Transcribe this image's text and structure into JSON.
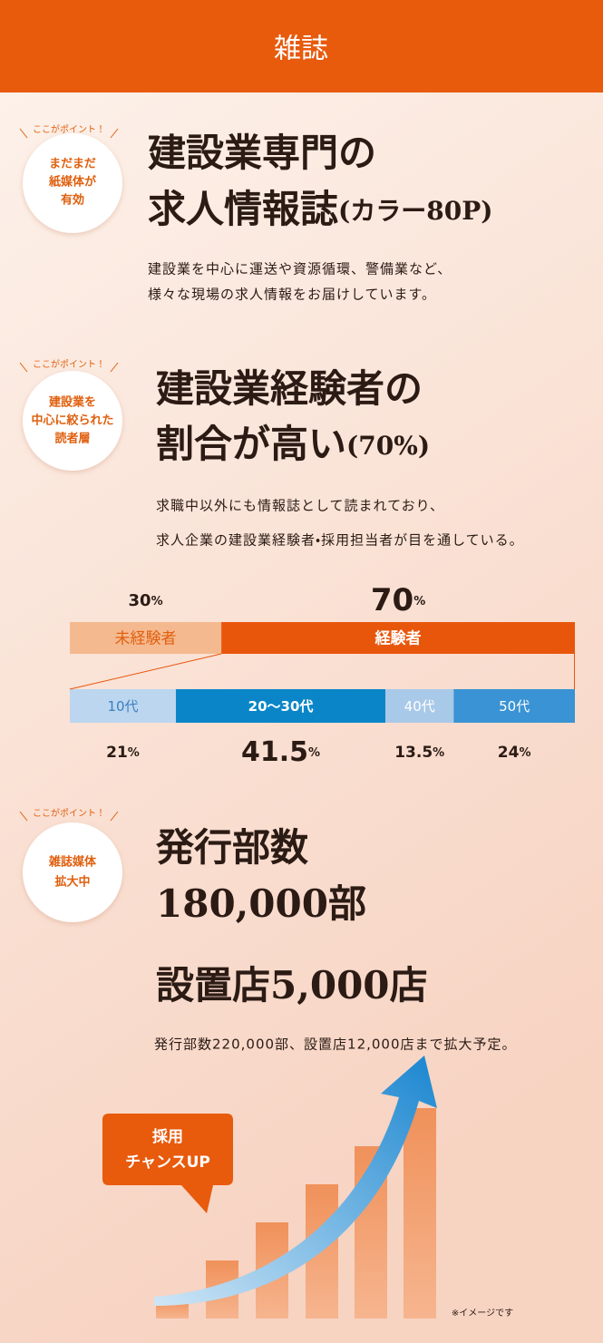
{
  "header": {
    "title": "雑誌"
  },
  "sections": [
    {
      "badge": "ここがポイント！",
      "circle": [
        "まだまだ",
        "紙媒体が",
        "有効"
      ],
      "heading": [
        "建設業専門の",
        "求人情報誌"
      ],
      "heading_suffix": "(カラー80P)",
      "body": [
        "建設業を中心に運送や資源循環、警備業など、",
        "様々な現場の求人情報をお届けしています。"
      ]
    },
    {
      "badge": "ここがポイント！",
      "circle": [
        "建設業を",
        "中心に絞られた",
        "読者層"
      ],
      "heading": [
        "建設業経験者の",
        "割合が高い"
      ],
      "heading_suffix": "(70%)",
      "body": [
        "求職中以外にも情報誌として読まれており、",
        "求人企業の建設業経験者・採用担当者が目を通している。"
      ],
      "experience_chart": {
        "unit": "%",
        "segments": [
          {
            "label": "未経験者",
            "value": 30,
            "color": "#f5b98f",
            "text_color": "#e0600f"
          },
          {
            "label": "経験者",
            "value": 70,
            "color": "#e8560c",
            "text_color": "#ffffff"
          }
        ]
      },
      "age_chart": {
        "unit": "%",
        "segments": [
          {
            "label": "10代",
            "value": 21,
            "color": "#bcd6ef",
            "text_color": "#3a7fc0"
          },
          {
            "label": "20～30代",
            "value": 41.5,
            "color": "#0a86c8",
            "text_color": "#ffffff"
          },
          {
            "label": "40代",
            "value": 13.5,
            "color": "#a9c9e8",
            "text_color": "#ffffff"
          },
          {
            "label": "50代",
            "value": 24,
            "color": "#3a93d4",
            "text_color": "#ffffff"
          }
        ]
      }
    },
    {
      "badge": "ここがポイント！",
      "circle": [
        "雑誌媒体",
        "拡大中"
      ],
      "heading": [
        "発行部数",
        "180,000部",
        "設置店5,000店"
      ],
      "body": "発行部数220,000部、設置店12,000店まで拡大予定。",
      "bubble": [
        "採用",
        "チャンスUP"
      ],
      "note": "※イメージです"
    }
  ]
}
